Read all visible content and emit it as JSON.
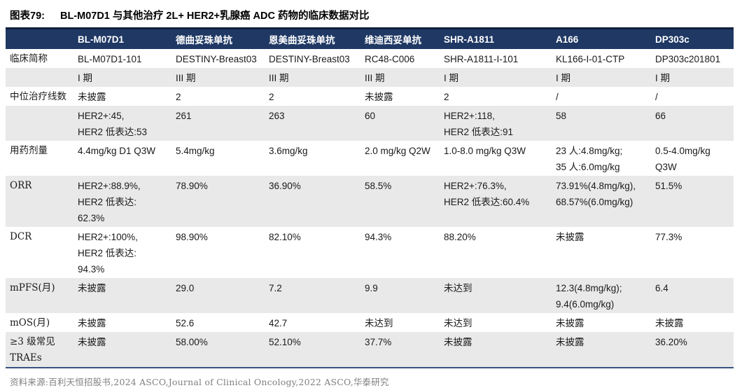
{
  "title": {
    "tag": "图表79:",
    "text": "BL-M07D1 与其他治疗 2L+ HER2+乳腺癌 ADC 药物的临床数据对比"
  },
  "table": {
    "columns": [
      "",
      "BL-M07D1",
      "德曲妥珠单抗",
      "恩美曲妥珠单抗",
      "维迪西妥单抗",
      "SHR-A1811",
      "A166",
      "DP303c"
    ],
    "rows": [
      {
        "label": "临床简称",
        "shade": false,
        "cells": [
          "BL-M07D1-101",
          "DESTINY-Breast03",
          "DESTINY-Breast03",
          "RC48-C006",
          "SHR-A1811-I-101",
          "KL166-I-01-CTP",
          "DP303c201801"
        ]
      },
      {
        "label": "",
        "shade": true,
        "cells": [
          "I 期",
          "III 期",
          "III 期",
          "III 期",
          "I 期",
          "I 期",
          "I 期"
        ]
      },
      {
        "label": "中位治疗线数",
        "shade": false,
        "cells": [
          "未披露",
          "2",
          "2",
          "未披露",
          "2",
          "/",
          "/"
        ]
      },
      {
        "label": "",
        "shade": true,
        "cells": [
          "HER2+:45,\nHER2 低表达:53",
          "261",
          "263",
          "60",
          "HER2+:118,\nHER2 低表达:91",
          "58",
          "66"
        ]
      },
      {
        "label": "用药剂量",
        "shade": false,
        "cells": [
          "4.4mg/kg D1 Q3W",
          "5.4mg/kg",
          "3.6mg/kg",
          "2.0 mg/kg Q2W",
          "1.0-8.0 mg/kg Q3W",
          "23 人:4.8mg/kg;\n35 人:6.0mg/kg",
          "0.5-4.0mg/kg Q3W"
        ]
      },
      {
        "label": "ORR",
        "shade": true,
        "cells": [
          "HER2+:88.9%,\nHER2 低表达:\n62.3%",
          "78.90%",
          "36.90%",
          "58.5%",
          "HER2+:76.3%,\nHER2 低表达:60.4%",
          "73.91%(4.8mg/kg),\n68.57%(6.0mg/kg)",
          "51.5%"
        ]
      },
      {
        "label": "DCR",
        "shade": false,
        "cells": [
          "HER2+:100%,\nHER2 低表达:\n94.3%",
          "98.90%",
          "82.10%",
          "94.3%",
          "88.20%",
          "未披露",
          "77.3%"
        ]
      },
      {
        "label": "mPFS(月)",
        "shade": true,
        "cells": [
          "未披露",
          "29.0",
          "7.2",
          "9.9",
          "未达到",
          "12.3(4.8mg/kg);\n9.4(6.0mg/kg)",
          "6.4"
        ]
      },
      {
        "label": "mOS(月)",
        "shade": false,
        "cells": [
          "未披露",
          "52.6",
          "42.7",
          "未达到",
          "未达到",
          "未披露",
          "未披露"
        ]
      },
      {
        "label": "≥3 级常见\nTRAEs",
        "shade": true,
        "cells": [
          "未披露",
          "58.00%",
          "52.10%",
          "37.7%",
          "未披露",
          "未披露",
          "36.20%"
        ]
      }
    ]
  },
  "footer": {
    "text": "资料来源:百利天恒招股书,2024 ASCO,Journal of Clinical Oncology,2022 ASCO,华泰研究"
  },
  "colors": {
    "header_bg": "#1F3864",
    "header_top_border": "#111F3C",
    "band_bg": "#E9E9E9",
    "bottom_border": "#3A5380",
    "footer_text": "#808080"
  }
}
